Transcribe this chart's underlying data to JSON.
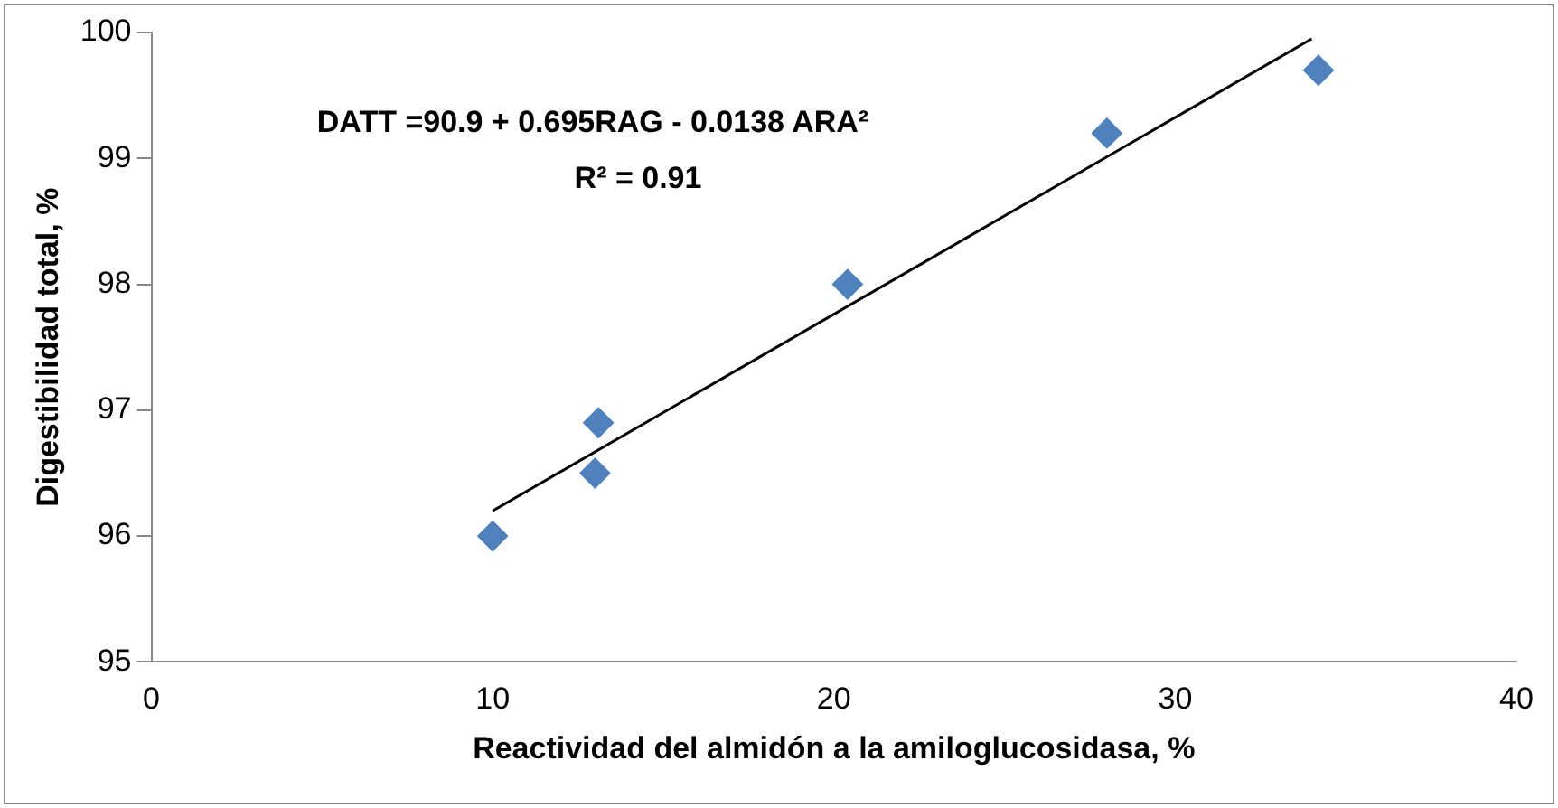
{
  "chart_data": {
    "type": "scatter",
    "xlabel": "Reactividad del almidón a la amiloglucosidasa, %",
    "ylabel": "Digestibilidad total, %",
    "annotations": [
      "DATT =90.9 + 0.695RAG - 0.0138 ARA²",
      "R² = 0.91"
    ],
    "x": [
      10,
      13,
      13.1,
      20.4,
      28,
      34.2
    ],
    "series": [
      {
        "color": "#4f81bd",
        "marker": "diamond",
        "values": [
          96,
          96.5,
          96.9,
          98,
          99.2,
          99.7
        ]
      },
      {
        "type": "line",
        "color": "#000000",
        "marker": "none",
        "x": [
          10,
          34
        ],
        "values": [
          96.2,
          99.95
        ]
      }
    ],
    "xlim": [
      0,
      40
    ],
    "xticks": [
      0,
      10,
      20,
      30,
      40
    ],
    "ylim": [
      95,
      100
    ],
    "yticks": [
      95,
      96,
      97,
      98,
      99,
      100
    ],
    "grid": false,
    "legend": false
  }
}
